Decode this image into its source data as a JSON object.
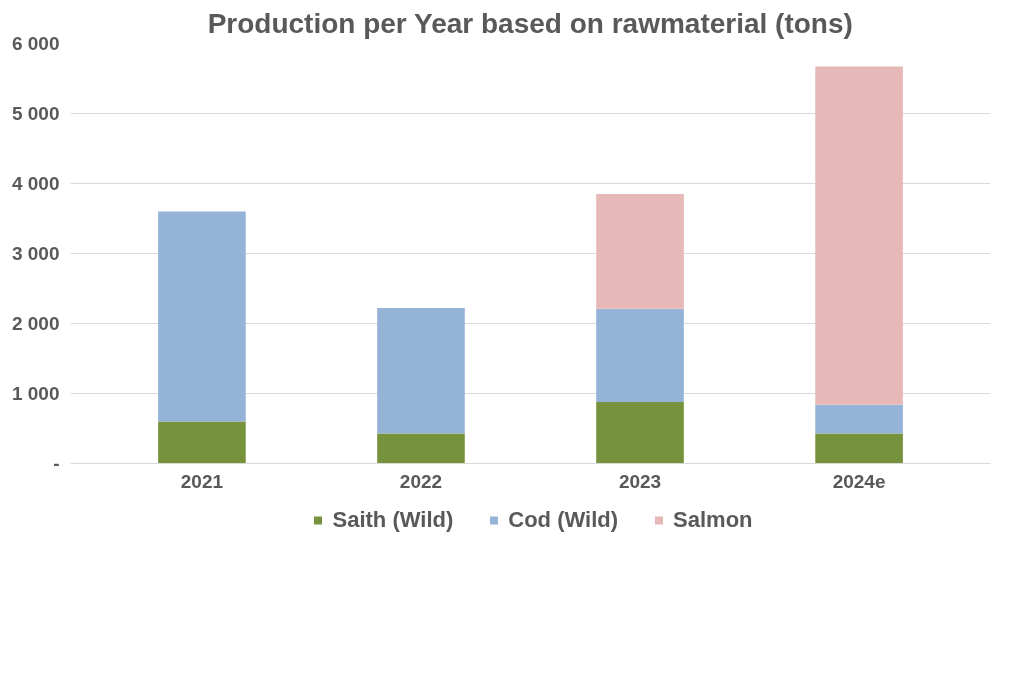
{
  "chart_data": {
    "type": "bar",
    "title": "Production per Year based on rawmaterial (tons)",
    "categories": [
      "2021",
      "2022",
      "2023",
      "2024e"
    ],
    "stacked": true,
    "series": [
      {
        "name": "Saith (Wild)",
        "color": "#76923c",
        "values": [
          600,
          430,
          880,
          430
        ]
      },
      {
        "name": "Cod (Wild)",
        "color": "#95b3d7",
        "values": [
          3000,
          1790,
          1330,
          410
        ]
      },
      {
        "name": "Salmon",
        "color": "#e6b8b7",
        "values": [
          0,
          0,
          1640,
          4830
        ]
      }
    ],
    "ylim": [
      0,
      6000
    ],
    "yticks": [
      {
        "value": 0,
        "label": "-"
      },
      {
        "value": 1000,
        "label": "1 000"
      },
      {
        "value": 2000,
        "label": "2 000"
      },
      {
        "value": 3000,
        "label": "3 000"
      },
      {
        "value": 4000,
        "label": "4 000"
      },
      {
        "value": 5000,
        "label": "5 000"
      },
      {
        "value": 6000,
        "label": "6 000"
      }
    ],
    "grid": "y",
    "legend": "bottom"
  }
}
